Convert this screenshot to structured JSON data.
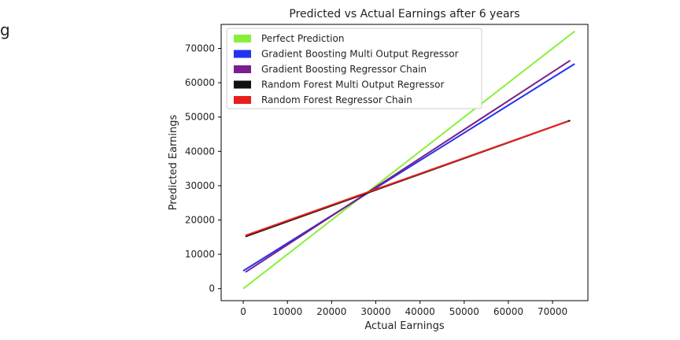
{
  "page_mark": "g",
  "chart_data": {
    "type": "line",
    "title": "Predicted vs Actual Earnings after 6 years",
    "xlabel": "Actual Earnings",
    "ylabel": "Predicted Earnings",
    "xlim": [
      -5000,
      78000
    ],
    "ylim": [
      -3500,
      77000
    ],
    "xticks": [
      0,
      10000,
      20000,
      30000,
      40000,
      50000,
      60000,
      70000
    ],
    "yticks": [
      0,
      10000,
      20000,
      30000,
      40000,
      50000,
      60000,
      70000
    ],
    "grid": false,
    "legend_position": "top-left",
    "series": [
      {
        "name": "Perfect Prediction",
        "color": "#88f03c",
        "x": [
          0,
          75000
        ],
        "y": [
          0,
          75000
        ]
      },
      {
        "name": "Gradient Boosting Multi Output Regressor",
        "color": "#2233ee",
        "x": [
          0,
          75000
        ],
        "y": [
          5200,
          65500
        ]
      },
      {
        "name": "Gradient Boosting Regressor Chain",
        "color": "#7a1f8c",
        "x": [
          500,
          74000
        ],
        "y": [
          4800,
          66500
        ]
      },
      {
        "name": "Random Forest Multi Output Regressor",
        "color": "#111111",
        "x": [
          500,
          74000
        ],
        "y": [
          15200,
          49000
        ]
      },
      {
        "name": "Random Forest Regressor Chain",
        "color": "#e8201c",
        "x": [
          500,
          73500
        ],
        "y": [
          15500,
          48800
        ]
      }
    ]
  }
}
